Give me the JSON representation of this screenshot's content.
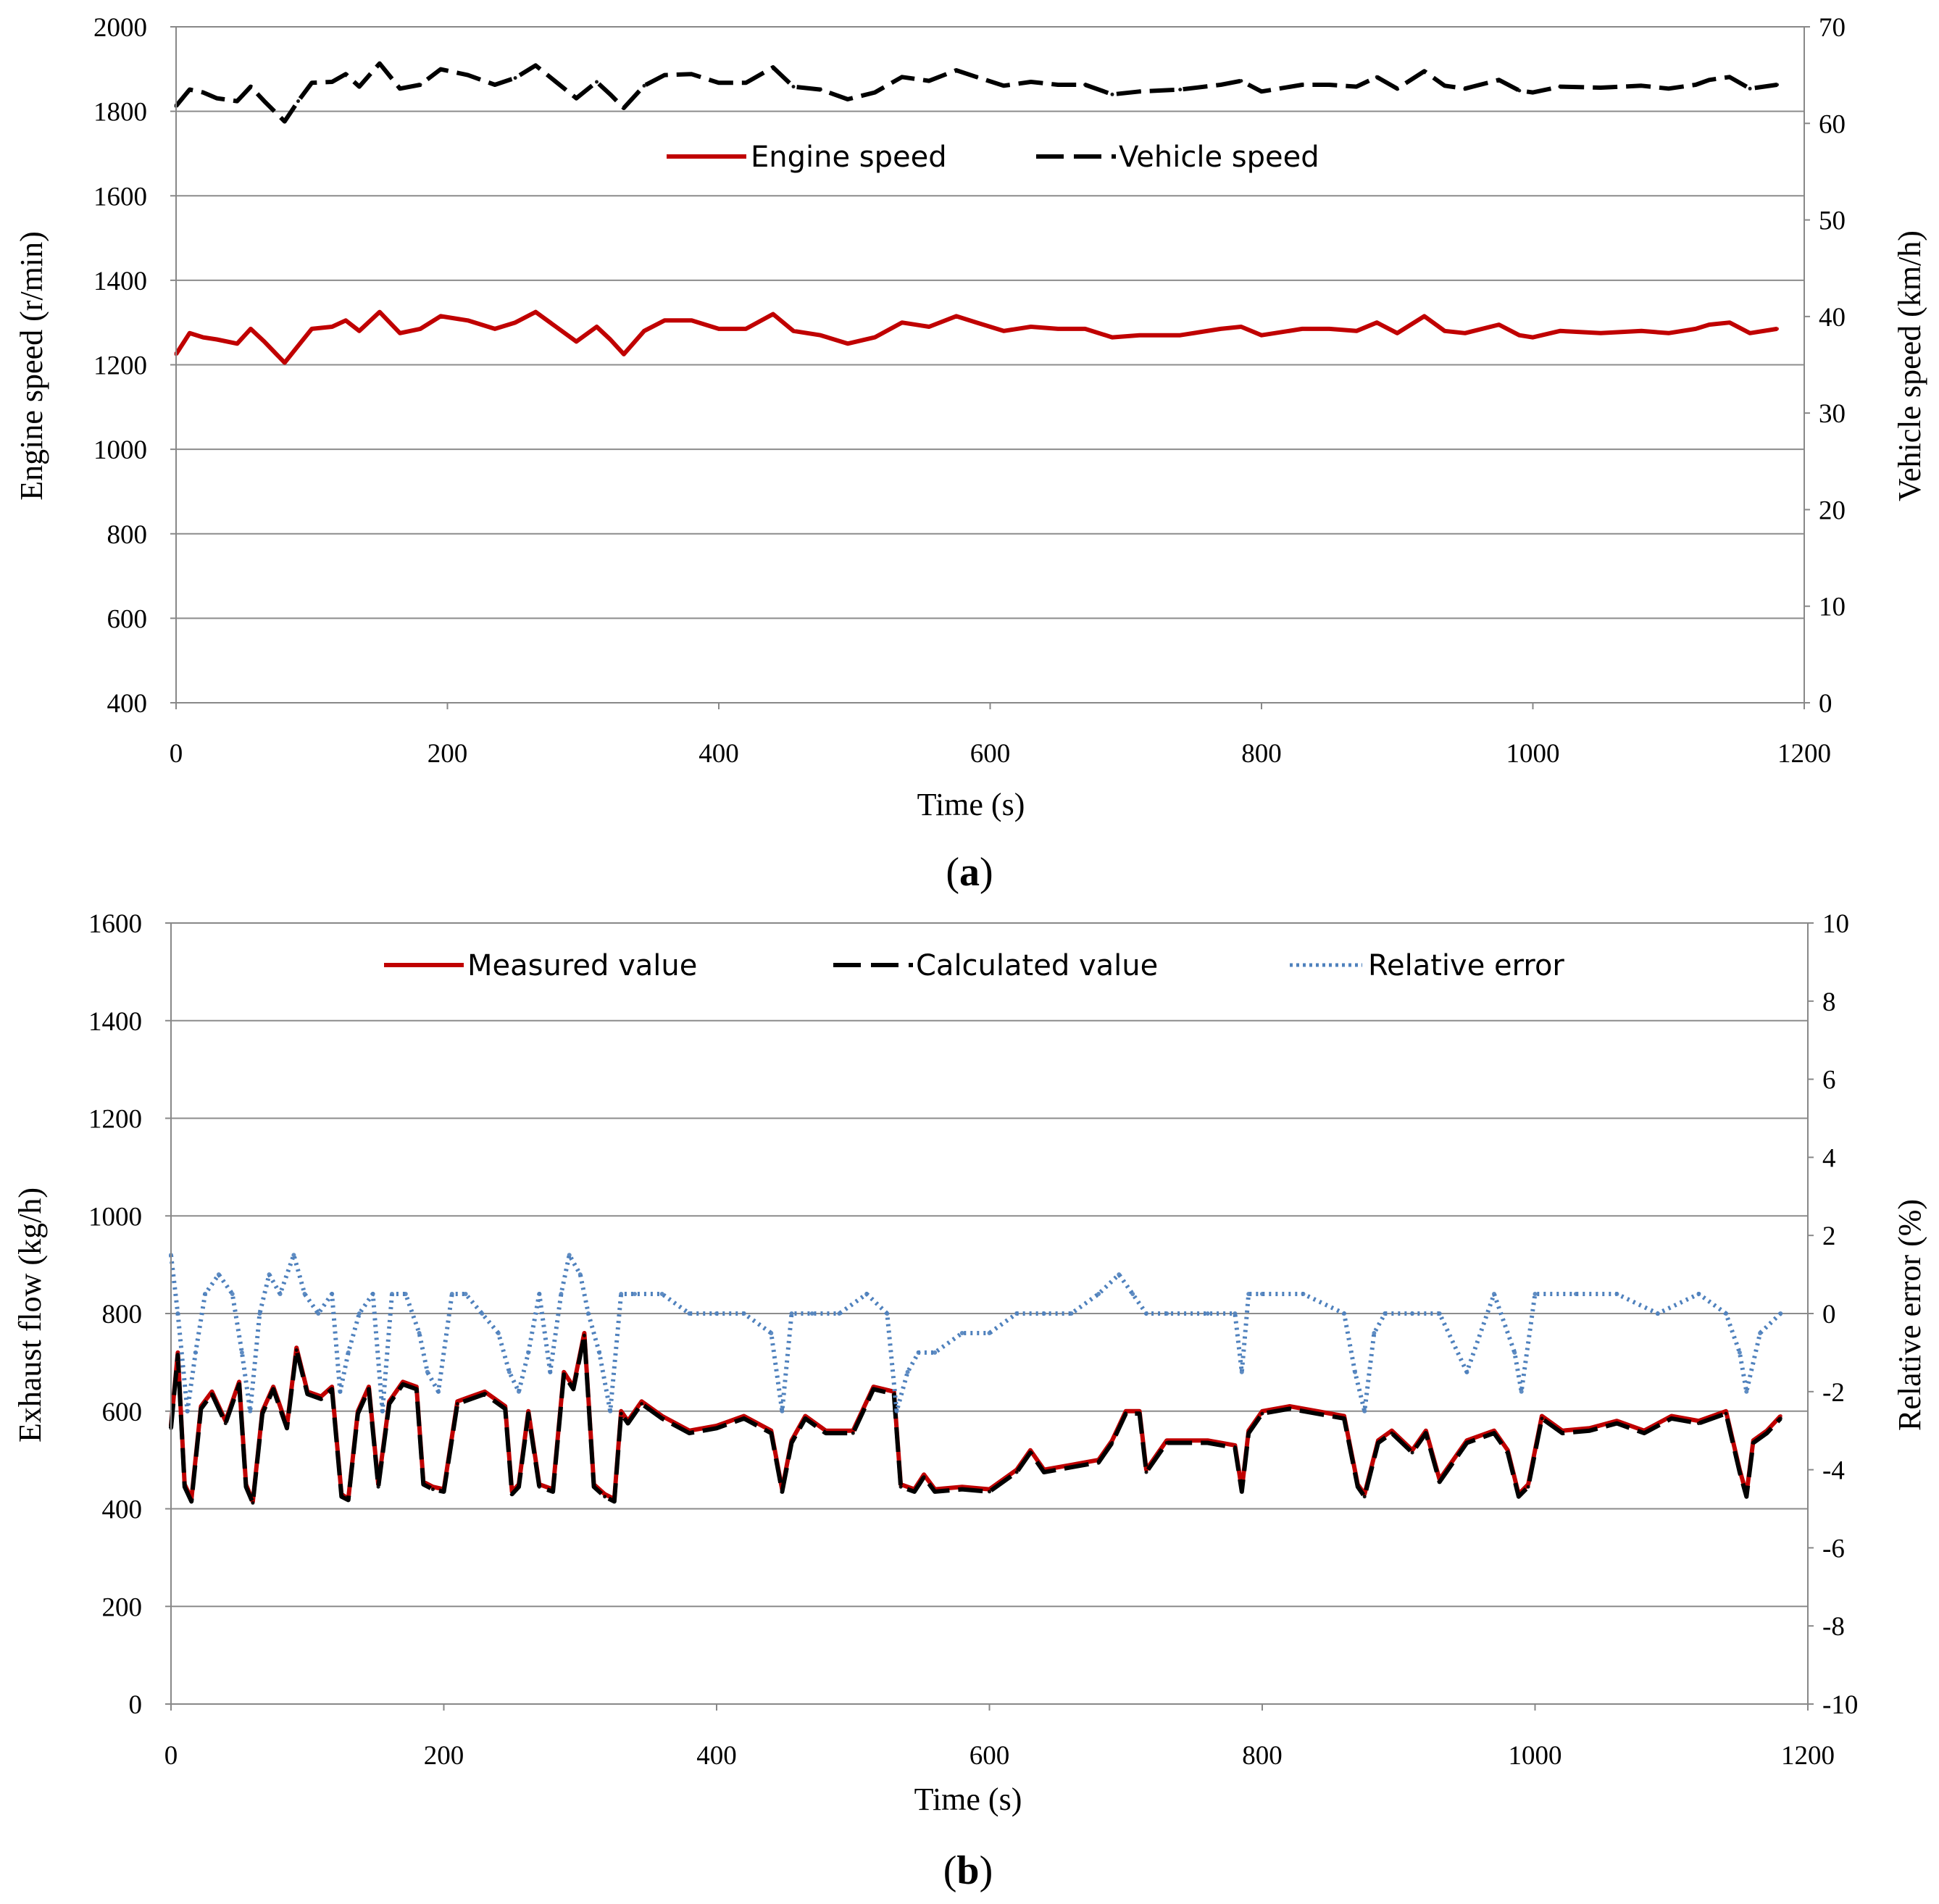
{
  "chart_data": [
    {
      "type": "line",
      "caption_letter": "a",
      "caption_open": "(",
      "caption_close": ")",
      "xlabel": "Time (s)",
      "ylabel": "Engine speed (r/min)",
      "y2label": "Vehicle speed (km/h)",
      "xlim": [
        0,
        1200
      ],
      "ylim": [
        400,
        2000
      ],
      "y2lim": [
        0,
        70
      ],
      "xticks": [
        "0",
        "200",
        "400",
        "600",
        "800",
        "1000",
        "1200"
      ],
      "yticks": [
        "2000",
        "1800",
        "1600",
        "1400",
        "1200",
        "1000",
        "800",
        "600",
        "400"
      ],
      "y2ticks": [
        "70",
        "60",
        "50",
        "40",
        "30",
        "20",
        "10",
        "0"
      ],
      "grid": true,
      "legend": "top-center",
      "series": [
        {
          "name": "Engine speed",
          "axis": "left",
          "color": "#c00000",
          "style": "solid",
          "x": [
            0,
            10,
            20,
            30,
            45,
            55,
            65,
            80,
            90,
            100,
            115,
            125,
            135,
            150,
            165,
            180,
            195,
            215,
            235,
            250,
            265,
            280,
            295,
            310,
            320,
            330,
            345,
            360,
            380,
            400,
            420,
            440,
            455,
            475,
            495,
            515,
            535,
            555,
            575,
            590,
            610,
            630,
            650,
            670,
            690,
            710,
            740,
            770,
            785,
            800,
            830,
            850,
            870,
            885,
            900,
            920,
            935,
            950,
            975,
            990,
            1000,
            1020,
            1050,
            1080,
            1100,
            1120,
            1130,
            1145,
            1160,
            1180
          ],
          "values": [
            1225,
            1275,
            1265,
            1260,
            1250,
            1285,
            1255,
            1205,
            1245,
            1285,
            1290,
            1305,
            1280,
            1325,
            1275,
            1285,
            1315,
            1305,
            1285,
            1300,
            1325,
            1290,
            1255,
            1290,
            1260,
            1225,
            1280,
            1305,
            1305,
            1285,
            1285,
            1320,
            1280,
            1270,
            1250,
            1265,
            1300,
            1290,
            1315,
            1300,
            1280,
            1290,
            1285,
            1285,
            1265,
            1270,
            1270,
            1285,
            1290,
            1270,
            1285,
            1285,
            1280,
            1300,
            1275,
            1315,
            1280,
            1275,
            1295,
            1270,
            1265,
            1280,
            1275,
            1280,
            1275,
            1285,
            1295,
            1300,
            1275,
            1285
          ]
        },
        {
          "name": "Vehicle speed",
          "axis": "right",
          "color": "#000000",
          "style": "dashed",
          "x": [
            0,
            10,
            20,
            30,
            45,
            55,
            65,
            80,
            90,
            100,
            115,
            125,
            135,
            150,
            165,
            180,
            195,
            215,
            235,
            250,
            265,
            280,
            295,
            310,
            320,
            330,
            345,
            360,
            380,
            400,
            420,
            440,
            455,
            475,
            495,
            515,
            535,
            555,
            575,
            590,
            610,
            630,
            650,
            670,
            690,
            710,
            740,
            770,
            785,
            800,
            830,
            850,
            870,
            885,
            900,
            920,
            935,
            950,
            975,
            990,
            1000,
            1020,
            1050,
            1080,
            1100,
            1120,
            1130,
            1145,
            1160,
            1180
          ],
          "values": [
            61.8,
            63.5,
            63.2,
            62.6,
            62.3,
            63.8,
            62.3,
            60.2,
            62.3,
            64.2,
            64.3,
            65.1,
            63.8,
            66.2,
            63.6,
            64.0,
            65.6,
            65.0,
            64.0,
            64.7,
            66.0,
            64.3,
            62.6,
            64.3,
            63.0,
            61.6,
            63.9,
            65.0,
            65.1,
            64.2,
            64.2,
            65.8,
            63.8,
            63.5,
            62.5,
            63.2,
            64.8,
            64.4,
            65.5,
            64.8,
            63.9,
            64.3,
            64.0,
            64.0,
            63.0,
            63.3,
            63.5,
            64.0,
            64.4,
            63.3,
            64.0,
            64.0,
            63.8,
            64.8,
            63.6,
            65.4,
            63.9,
            63.6,
            64.5,
            63.4,
            63.2,
            63.8,
            63.7,
            63.9,
            63.6,
            64.0,
            64.5,
            64.8,
            63.6,
            64.0
          ]
        }
      ]
    },
    {
      "type": "line",
      "caption_letter": "b",
      "caption_open": "(",
      "caption_close": ")",
      "xlabel": "Time (s)",
      "ylabel": "Exhaust flow (kg/h)",
      "y2label": "Relative error (%)",
      "xlim": [
        0,
        1200
      ],
      "ylim": [
        0,
        1600
      ],
      "y2lim": [
        -10,
        10
      ],
      "xticks": [
        "0",
        "200",
        "400",
        "600",
        "800",
        "1000",
        "1200"
      ],
      "yticks": [
        "1600",
        "1400",
        "1200",
        "1000",
        "800",
        "600",
        "400",
        "200",
        "0"
      ],
      "y2ticks": [
        "10",
        "8",
        "6",
        "4",
        "2",
        "0",
        "-2",
        "-4",
        "-6",
        "-8",
        "-10"
      ],
      "grid": true,
      "legend": "top-center",
      "series": [
        {
          "name": "Measured value",
          "axis": "left",
          "color": "#c00000",
          "style": "solid",
          "x": [
            0,
            5,
            10,
            15,
            22,
            30,
            40,
            50,
            55,
            60,
            67,
            75,
            85,
            92,
            100,
            110,
            118,
            125,
            130,
            137,
            145,
            152,
            160,
            170,
            180,
            185,
            192,
            200,
            210,
            220,
            230,
            245,
            250,
            255,
            262,
            270,
            280,
            288,
            295,
            303,
            310,
            318,
            325,
            330,
            335,
            345,
            360,
            380,
            400,
            420,
            440,
            448,
            455,
            465,
            480,
            500,
            515,
            530,
            535,
            545,
            552,
            560,
            580,
            600,
            620,
            630,
            640,
            660,
            680,
            690,
            700,
            710,
            715,
            730,
            760,
            780,
            785,
            790,
            800,
            820,
            860,
            870,
            875,
            885,
            895,
            910,
            920,
            930,
            950,
            970,
            980,
            988,
            995,
            1005,
            1020,
            1040,
            1060,
            1080,
            1100,
            1120,
            1140,
            1150,
            1155,
            1160,
            1170,
            1180
          ],
          "values": [
            570,
            720,
            450,
            420,
            610,
            640,
            580,
            660,
            450,
            415,
            600,
            650,
            570,
            730,
            640,
            630,
            650,
            430,
            420,
            600,
            650,
            450,
            620,
            660,
            650,
            455,
            445,
            440,
            620,
            630,
            640,
            610,
            435,
            450,
            600,
            450,
            440,
            680,
            650,
            760,
            450,
            430,
            420,
            600,
            580,
            620,
            590,
            560,
            570,
            590,
            560,
            440,
            540,
            590,
            560,
            560,
            650,
            640,
            450,
            440,
            470,
            440,
            445,
            440,
            480,
            520,
            480,
            490,
            500,
            540,
            600,
            600,
            480,
            540,
            540,
            530,
            440,
            560,
            600,
            610,
            590,
            450,
            430,
            540,
            560,
            520,
            560,
            460,
            540,
            560,
            520,
            430,
            450,
            590,
            560,
            565,
            580,
            560,
            590,
            580,
            600,
            480,
            430,
            540,
            560,
            590
          ]
        },
        {
          "name": "Calculated value",
          "axis": "left",
          "color": "#000000",
          "style": "dashed",
          "x": [
            0,
            5,
            10,
            15,
            22,
            30,
            40,
            50,
            55,
            60,
            67,
            75,
            85,
            92,
            100,
            110,
            118,
            125,
            130,
            137,
            145,
            152,
            160,
            170,
            180,
            185,
            192,
            200,
            210,
            220,
            230,
            245,
            250,
            255,
            262,
            270,
            280,
            288,
            295,
            303,
            310,
            318,
            325,
            330,
            335,
            345,
            360,
            380,
            400,
            420,
            440,
            448,
            455,
            465,
            480,
            500,
            515,
            530,
            535,
            545,
            552,
            560,
            580,
            600,
            620,
            630,
            640,
            660,
            680,
            690,
            700,
            710,
            715,
            730,
            760,
            780,
            785,
            790,
            800,
            820,
            860,
            870,
            875,
            885,
            895,
            910,
            920,
            930,
            950,
            970,
            980,
            988,
            995,
            1005,
            1020,
            1040,
            1060,
            1080,
            1100,
            1120,
            1140,
            1150,
            1155,
            1160,
            1170,
            1180
          ],
          "values": [
            565,
            715,
            445,
            415,
            605,
            635,
            575,
            655,
            445,
            412,
            595,
            645,
            565,
            725,
            635,
            625,
            645,
            425,
            418,
            595,
            645,
            445,
            615,
            655,
            645,
            450,
            440,
            435,
            615,
            625,
            635,
            605,
            430,
            445,
            595,
            445,
            435,
            675,
            645,
            755,
            445,
            425,
            415,
            595,
            575,
            615,
            585,
            555,
            565,
            585,
            555,
            435,
            535,
            585,
            555,
            555,
            645,
            635,
            445,
            435,
            465,
            435,
            440,
            435,
            475,
            515,
            475,
            485,
            495,
            535,
            595,
            595,
            475,
            535,
            535,
            525,
            435,
            555,
            595,
            605,
            585,
            445,
            425,
            535,
            555,
            515,
            555,
            455,
            535,
            555,
            515,
            425,
            445,
            585,
            555,
            560,
            575,
            555,
            585,
            575,
            595,
            475,
            425,
            535,
            555,
            585
          ]
        },
        {
          "name": "Relative error",
          "axis": "right",
          "color": "#4f81bd",
          "style": "dotted",
          "x": [
            0,
            5,
            12,
            18,
            25,
            35,
            45,
            52,
            58,
            65,
            72,
            80,
            90,
            98,
            108,
            118,
            124,
            130,
            138,
            148,
            155,
            162,
            172,
            182,
            188,
            196,
            206,
            216,
            228,
            240,
            248,
            255,
            262,
            270,
            278,
            286,
            292,
            300,
            306,
            314,
            322,
            330,
            340,
            360,
            380,
            400,
            420,
            440,
            448,
            455,
            470,
            490,
            510,
            525,
            532,
            540,
            548,
            560,
            580,
            600,
            620,
            640,
            660,
            680,
            695,
            705,
            715,
            730,
            760,
            780,
            785,
            790,
            800,
            830,
            860,
            868,
            875,
            882,
            890,
            910,
            930,
            950,
            970,
            985,
            990,
            1000,
            1030,
            1060,
            1090,
            1120,
            1140,
            1150,
            1155,
            1165,
            1180
          ],
          "values": [
            1.5,
            0.0,
            -2.5,
            -1.0,
            0.5,
            1.0,
            0.5,
            -1.0,
            -2.5,
            0.0,
            1.0,
            0.5,
            1.5,
            0.5,
            0.0,
            0.5,
            -2.0,
            -1.0,
            0.0,
            0.5,
            -2.5,
            0.5,
            0.5,
            -0.5,
            -1.5,
            -2.0,
            0.5,
            0.5,
            0.0,
            -0.5,
            -1.5,
            -2.0,
            -1.0,
            0.5,
            -1.5,
            0.5,
            1.5,
            1.0,
            0.0,
            -1.0,
            -2.5,
            0.5,
            0.5,
            0.5,
            0.0,
            0.0,
            0.0,
            -0.5,
            -2.5,
            0.0,
            0.0,
            0.0,
            0.5,
            0.0,
            -2.5,
            -1.5,
            -1.0,
            -1.0,
            -0.5,
            -0.5,
            0.0,
            0.0,
            0.0,
            0.5,
            1.0,
            0.5,
            0.0,
            0.0,
            0.0,
            0.0,
            -1.5,
            0.5,
            0.5,
            0.5,
            0.0,
            -1.5,
            -2.5,
            -0.5,
            0.0,
            0.0,
            0.0,
            -1.5,
            0.5,
            -1.0,
            -2.0,
            0.5,
            0.5,
            0.5,
            0.0,
            0.5,
            0.0,
            -1.0,
            -2.0,
            -0.5,
            0.0
          ]
        }
      ]
    }
  ]
}
